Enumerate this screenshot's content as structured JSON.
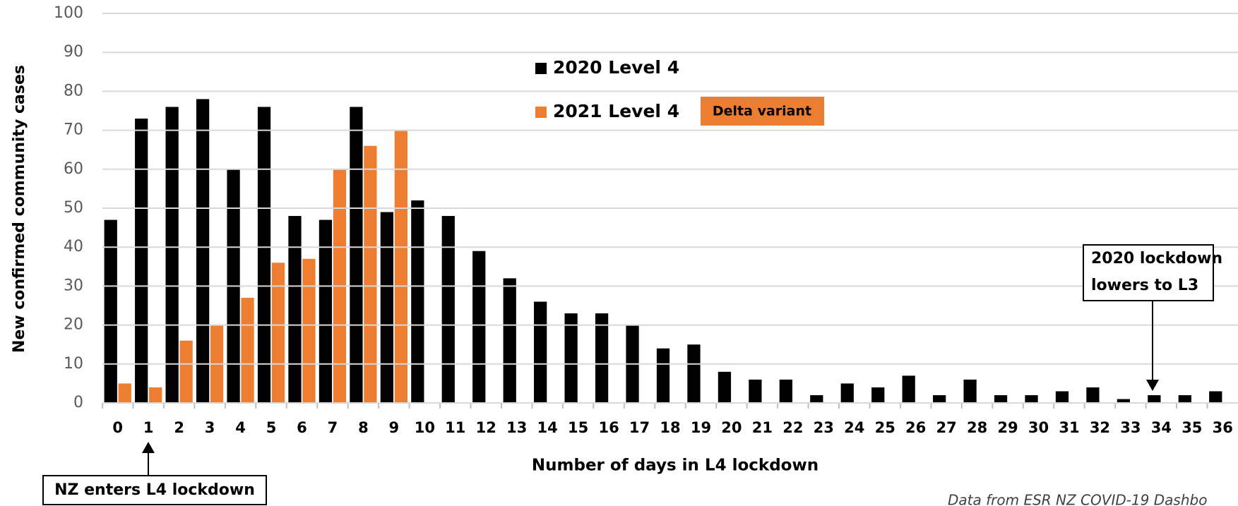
{
  "chart_data": {
    "type": "bar",
    "x_label": "Number of days in L4 lockdown",
    "y_label": "New confirmed community cases",
    "categories": [
      "0",
      "1",
      "2",
      "3",
      "4",
      "5",
      "6",
      "7",
      "8",
      "9",
      "10",
      "11",
      "12",
      "13",
      "14",
      "15",
      "16",
      "17",
      "18",
      "19",
      "20",
      "21",
      "22",
      "23",
      "24",
      "25",
      "26",
      "27",
      "28",
      "29",
      "30",
      "31",
      "32",
      "33",
      "34",
      "35",
      "36"
    ],
    "series": [
      {
        "name": "2020 Level 4",
        "color": "#000000",
        "values": [
          47,
          73,
          76,
          78,
          60,
          76,
          48,
          47,
          76,
          49,
          52,
          48,
          39,
          32,
          26,
          23,
          23,
          20,
          14,
          15,
          8,
          6,
          6,
          2,
          5,
          4,
          7,
          2,
          6,
          2,
          2,
          3,
          4,
          1,
          2,
          2,
          3
        ]
      },
      {
        "name": "2021 Level 4",
        "color": "#ed7d31",
        "values": [
          5,
          4,
          16,
          20,
          27,
          36,
          37,
          60,
          66,
          70,
          null,
          null,
          null,
          null,
          null,
          null,
          null,
          null,
          null,
          null,
          null,
          null,
          null,
          null,
          null,
          null,
          null,
          null,
          null,
          null,
          null,
          null,
          null,
          null,
          null,
          null,
          null
        ]
      }
    ],
    "ylim": [
      0,
      100
    ],
    "yticks": [
      0,
      10,
      20,
      30,
      40,
      50,
      60,
      70,
      80,
      90,
      100
    ],
    "grid": true,
    "annotations": {
      "delta": "Delta variant",
      "lowers": [
        "2020 lockdown",
        "lowers to L3"
      ],
      "enters": "NZ enters L4 lockdown",
      "source": "Data from ESR NZ COVID-19 Dashbo"
    }
  }
}
